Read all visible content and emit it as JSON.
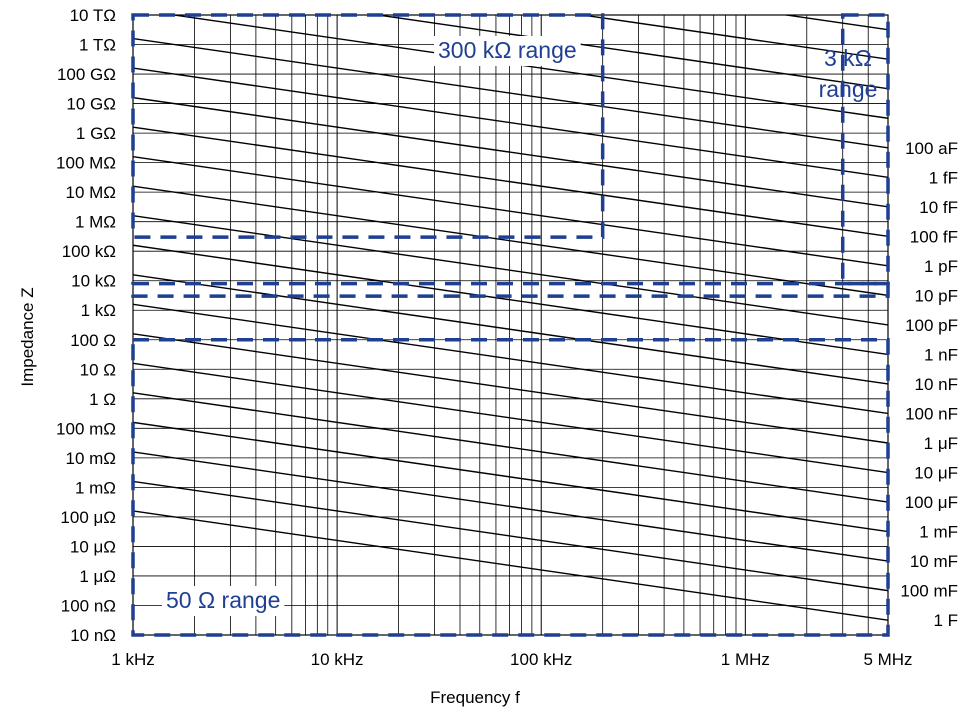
{
  "chart_data": {
    "type": "line",
    "x_scale": "log",
    "y_scale": "log",
    "xlabel": "Frequency f",
    "ylabel": "Impedance Z",
    "xlim_hz": [
      1000,
      5000000
    ],
    "ylim_ohm": [
      1e-08,
      10000000000000.0
    ],
    "x_ticks": [
      {
        "value": 1000,
        "label": "1 kHz"
      },
      {
        "value": 10000,
        "label": "10 kHz"
      },
      {
        "value": 100000,
        "label": "100 kHz"
      },
      {
        "value": 1000000,
        "label": "1 MHz"
      },
      {
        "value": 5000000,
        "label": "5 MHz"
      }
    ],
    "y_ticks": [
      {
        "value": 10000000000000.0,
        "label": "10 TΩ"
      },
      {
        "value": 1000000000000.0,
        "label": "1 TΩ"
      },
      {
        "value": 100000000000.0,
        "label": "100 GΩ"
      },
      {
        "value": 10000000000.0,
        "label": "10 GΩ"
      },
      {
        "value": 1000000000.0,
        "label": "1 GΩ"
      },
      {
        "value": 100000000.0,
        "label": "100 MΩ"
      },
      {
        "value": 10000000.0,
        "label": "10 MΩ"
      },
      {
        "value": 1000000.0,
        "label": "1 MΩ"
      },
      {
        "value": 100000.0,
        "label": "100 kΩ"
      },
      {
        "value": 10000.0,
        "label": "10 kΩ"
      },
      {
        "value": 1000.0,
        "label": "1 kΩ"
      },
      {
        "value": 100.0,
        "label": "100 Ω"
      },
      {
        "value": 10.0,
        "label": "10 Ω"
      },
      {
        "value": 1,
        "label": "1 Ω"
      },
      {
        "value": 0.1,
        "label": "100 mΩ"
      },
      {
        "value": 0.01,
        "label": "10 mΩ"
      },
      {
        "value": 0.001,
        "label": "1 mΩ"
      },
      {
        "value": 0.0001,
        "label": "100 μΩ"
      },
      {
        "value": 1e-05,
        "label": "10 μΩ"
      },
      {
        "value": 1e-06,
        "label": "1 μΩ"
      },
      {
        "value": 1e-07,
        "label": "100 nΩ"
      },
      {
        "value": 1e-08,
        "label": "10 nΩ"
      }
    ],
    "capacitance_lines": [
      {
        "label": "100 aF",
        "farads": 1e-16
      },
      {
        "label": "1 fF",
        "farads": 1e-15
      },
      {
        "label": "10 fF",
        "farads": 1e-14
      },
      {
        "label": "100 fF",
        "farads": 1e-13
      },
      {
        "label": "1 pF",
        "farads": 1e-12
      },
      {
        "label": "10 pF",
        "farads": 1e-11
      },
      {
        "label": "100 pF",
        "farads": 1e-10
      },
      {
        "label": "1 nF",
        "farads": 1e-09
      },
      {
        "label": "10 nF",
        "farads": 1e-08
      },
      {
        "label": "100 nF",
        "farads": 1e-07
      },
      {
        "label": "1 μF",
        "farads": 1e-06
      },
      {
        "label": "10 μF",
        "farads": 1e-05
      },
      {
        "label": "100 μF",
        "farads": 0.0001
      },
      {
        "label": "1 mF",
        "farads": 0.001
      },
      {
        "label": "10 mF",
        "farads": 0.01
      },
      {
        "label": "100 mF",
        "farads": 0.1
      },
      {
        "label": "1 F",
        "farads": 1
      }
    ],
    "extra_lines": [
      {
        "farads": 1e-17
      },
      {
        "farads": 1e-18
      },
      {
        "farads": 1e-19
      },
      {
        "farads": 1e-20
      }
    ],
    "ranges": [
      {
        "label_lines": [
          "300 kΩ range"
        ],
        "f_min": 1000,
        "f_max": 200000,
        "z_min": 300000,
        "z_max": 10000000000000.0,
        "color": "#1f3f93"
      },
      {
        "label_lines": [
          "3 kΩ",
          "range"
        ],
        "f_min": 1000,
        "f_max": 5000000,
        "z_min": 3000,
        "z_max": 8000,
        "color": "#1f3f93"
      },
      {
        "label_lines": [
          "3 kΩ",
          "range"
        ],
        "f_min": 3000000,
        "f_max": 5000000,
        "z_min": 8000,
        "z_max": 10000000000000.0,
        "color": "#1f3f93"
      },
      {
        "label_lines": [
          "50 Ω range"
        ],
        "f_min": 1000,
        "f_max": 5000000,
        "z_min": 1e-08,
        "z_max": 100,
        "color": "#1f3f93"
      }
    ],
    "grid": true
  }
}
